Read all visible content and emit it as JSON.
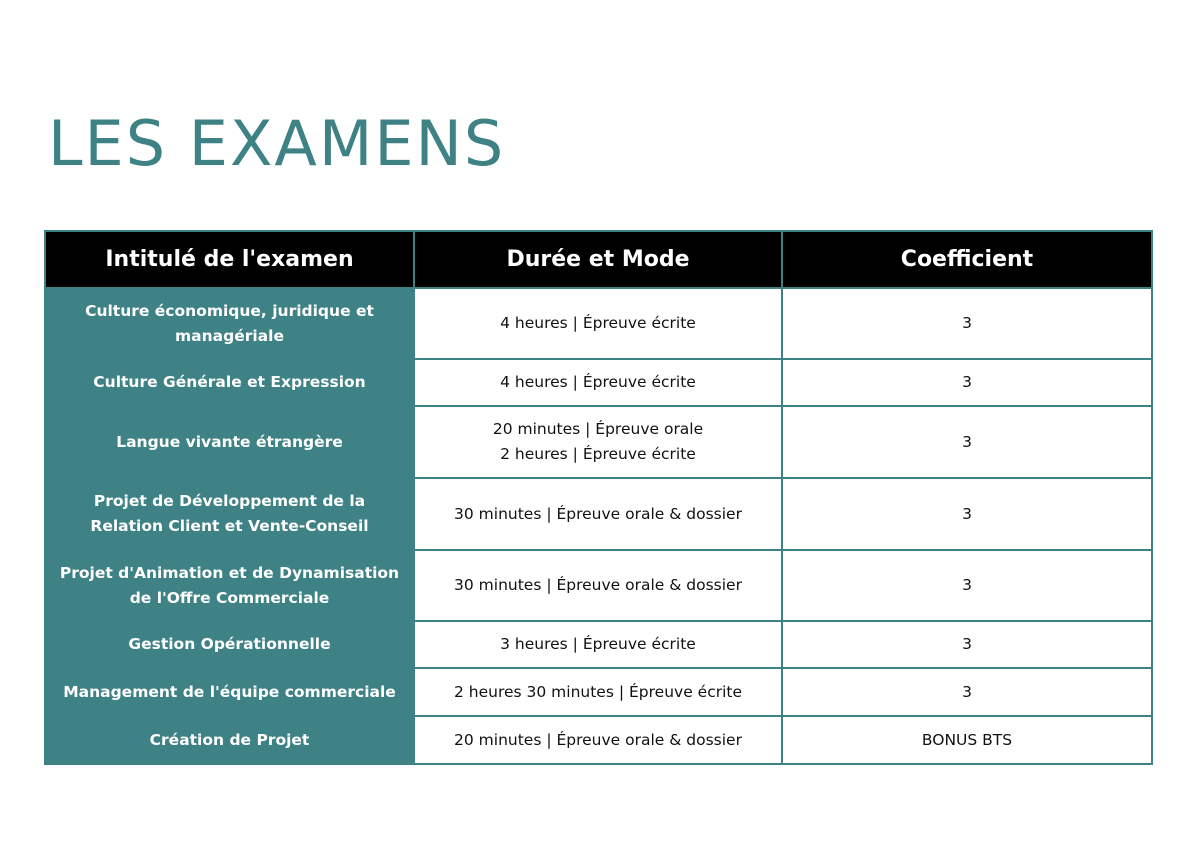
{
  "title": "LES EXAMENS",
  "table": {
    "headers": [
      "Intitulé de l'examen",
      "Durée et Mode",
      "Coefficient"
    ],
    "rows": [
      {
        "name": "Culture économique, juridique et managériale",
        "mode": [
          "4 heures | Épreuve écrite"
        ],
        "coef": "3"
      },
      {
        "name": "Culture Générale et Expression",
        "mode": [
          "4 heures | Épreuve écrite"
        ],
        "coef": "3"
      },
      {
        "name": "Langue vivante étrangère",
        "mode": [
          "20 minutes | Épreuve orale",
          "2 heures | Épreuve écrite"
        ],
        "coef": "3"
      },
      {
        "name": "Projet de Développement de la Relation Client et Vente-Conseil",
        "mode": [
          "30 minutes | Épreuve orale & dossier"
        ],
        "coef": "3"
      },
      {
        "name": "Projet d'Animation et de Dynamisation de l'Offre Commerciale",
        "mode": [
          "30 minutes | Épreuve orale & dossier"
        ],
        "coef": "3"
      },
      {
        "name": "Gestion Opérationnelle",
        "mode": [
          "3 heures | Épreuve écrite"
        ],
        "coef": "3"
      },
      {
        "name": "Management de l'équipe commerciale",
        "mode": [
          "2 heures 30 minutes | Épreuve écrite"
        ],
        "coef": "3"
      },
      {
        "name": "Création de Projet",
        "mode": [
          "20 minutes | Épreuve orale & dossier"
        ],
        "coef": "BONUS BTS"
      }
    ]
  },
  "colors": {
    "accent": "#3e8286",
    "header_bg": "#000000"
  }
}
